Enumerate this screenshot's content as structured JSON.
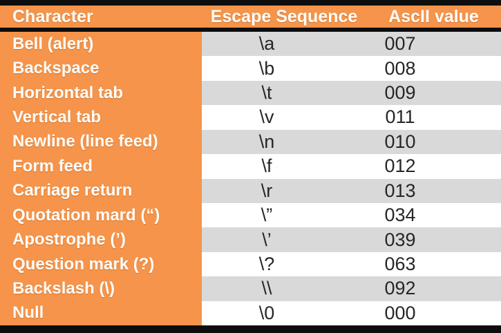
{
  "table": {
    "columns": [
      "Character",
      "Escape Sequence",
      "AscII value"
    ],
    "rows": [
      {
        "character": "Bell (alert)",
        "escape": "\\a",
        "ascii": "007"
      },
      {
        "character": "Backspace",
        "escape": "\\b",
        "ascii": "008"
      },
      {
        "character": "Horizontal tab",
        "escape": "\\t",
        "ascii": "009"
      },
      {
        "character": "Vertical tab",
        "escape": "\\v",
        "ascii": "011"
      },
      {
        "character": "Newline (line feed)",
        "escape": "\\n",
        "ascii": "010"
      },
      {
        "character": "Form feed",
        "escape": "\\f",
        "ascii": "012"
      },
      {
        "character": "Carriage return",
        "escape": "\\r",
        "ascii": "013"
      },
      {
        "character": "Quotation mard (“)",
        "escape": "\\”",
        "ascii": "034"
      },
      {
        "character": "Apostrophe (’)",
        "escape": "\\’",
        "ascii": "039"
      },
      {
        "character": "Question mark (?)",
        "escape": "\\?",
        "ascii": "063"
      },
      {
        "character": "Backslash (\\)",
        "escape": "\\\\",
        "ascii": "092"
      },
      {
        "character": "Null",
        "escape": "\\0",
        "ascii": "000"
      }
    ],
    "colors": {
      "header_orange": "#f5944a",
      "shaded_row_gray": "#d9d9d9",
      "row_white": "#ffffff",
      "border_black": "#0d0d0d",
      "header_text": "#fdfdfb",
      "data_text": "#262626"
    }
  }
}
